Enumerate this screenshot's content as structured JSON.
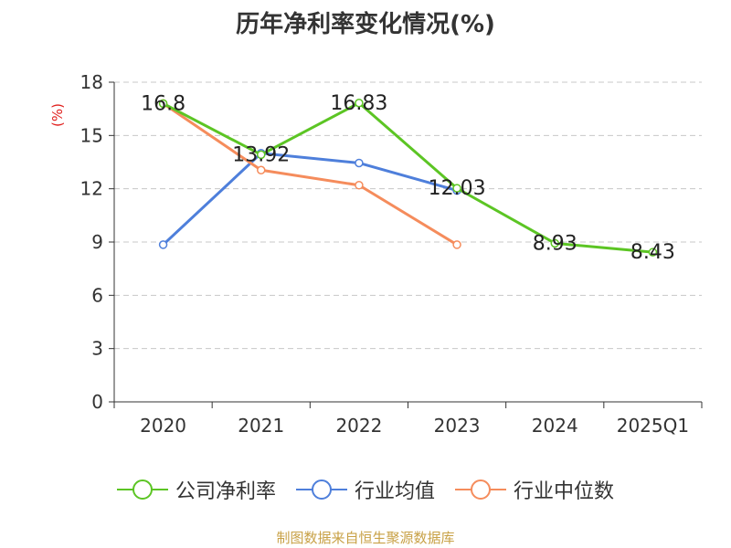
{
  "chart_data": {
    "type": "line",
    "title": "历年净利率变化情况(%)",
    "ylabel": "(%)",
    "xlabel": "",
    "ylim": [
      0,
      18
    ],
    "yticks": [
      "0",
      "3",
      "6",
      "9",
      "12",
      "15",
      "18"
    ],
    "categories": [
      "2020",
      "2021",
      "2022",
      "2023",
      "2024",
      "2025Q1"
    ],
    "series": [
      {
        "name": "公司净利率",
        "color": "#5cc524",
        "values": [
          16.8,
          13.92,
          16.83,
          12.03,
          8.93,
          8.43
        ],
        "labels": [
          "16.8",
          "13.92",
          "16.83",
          "12.03",
          "8.93",
          "8.43"
        ]
      },
      {
        "name": "行业均值",
        "color": "#4e7fdb",
        "values": [
          8.85,
          14.0,
          13.45,
          11.9,
          null,
          null
        ]
      },
      {
        "name": "行业中位数",
        "color": "#f58c5c",
        "values": [
          16.8,
          13.05,
          12.2,
          8.85,
          null,
          null
        ]
      }
    ],
    "grid": true,
    "legend_position": "bottom"
  },
  "footer": {
    "source": "制图数据来自恒生聚源数据库"
  }
}
